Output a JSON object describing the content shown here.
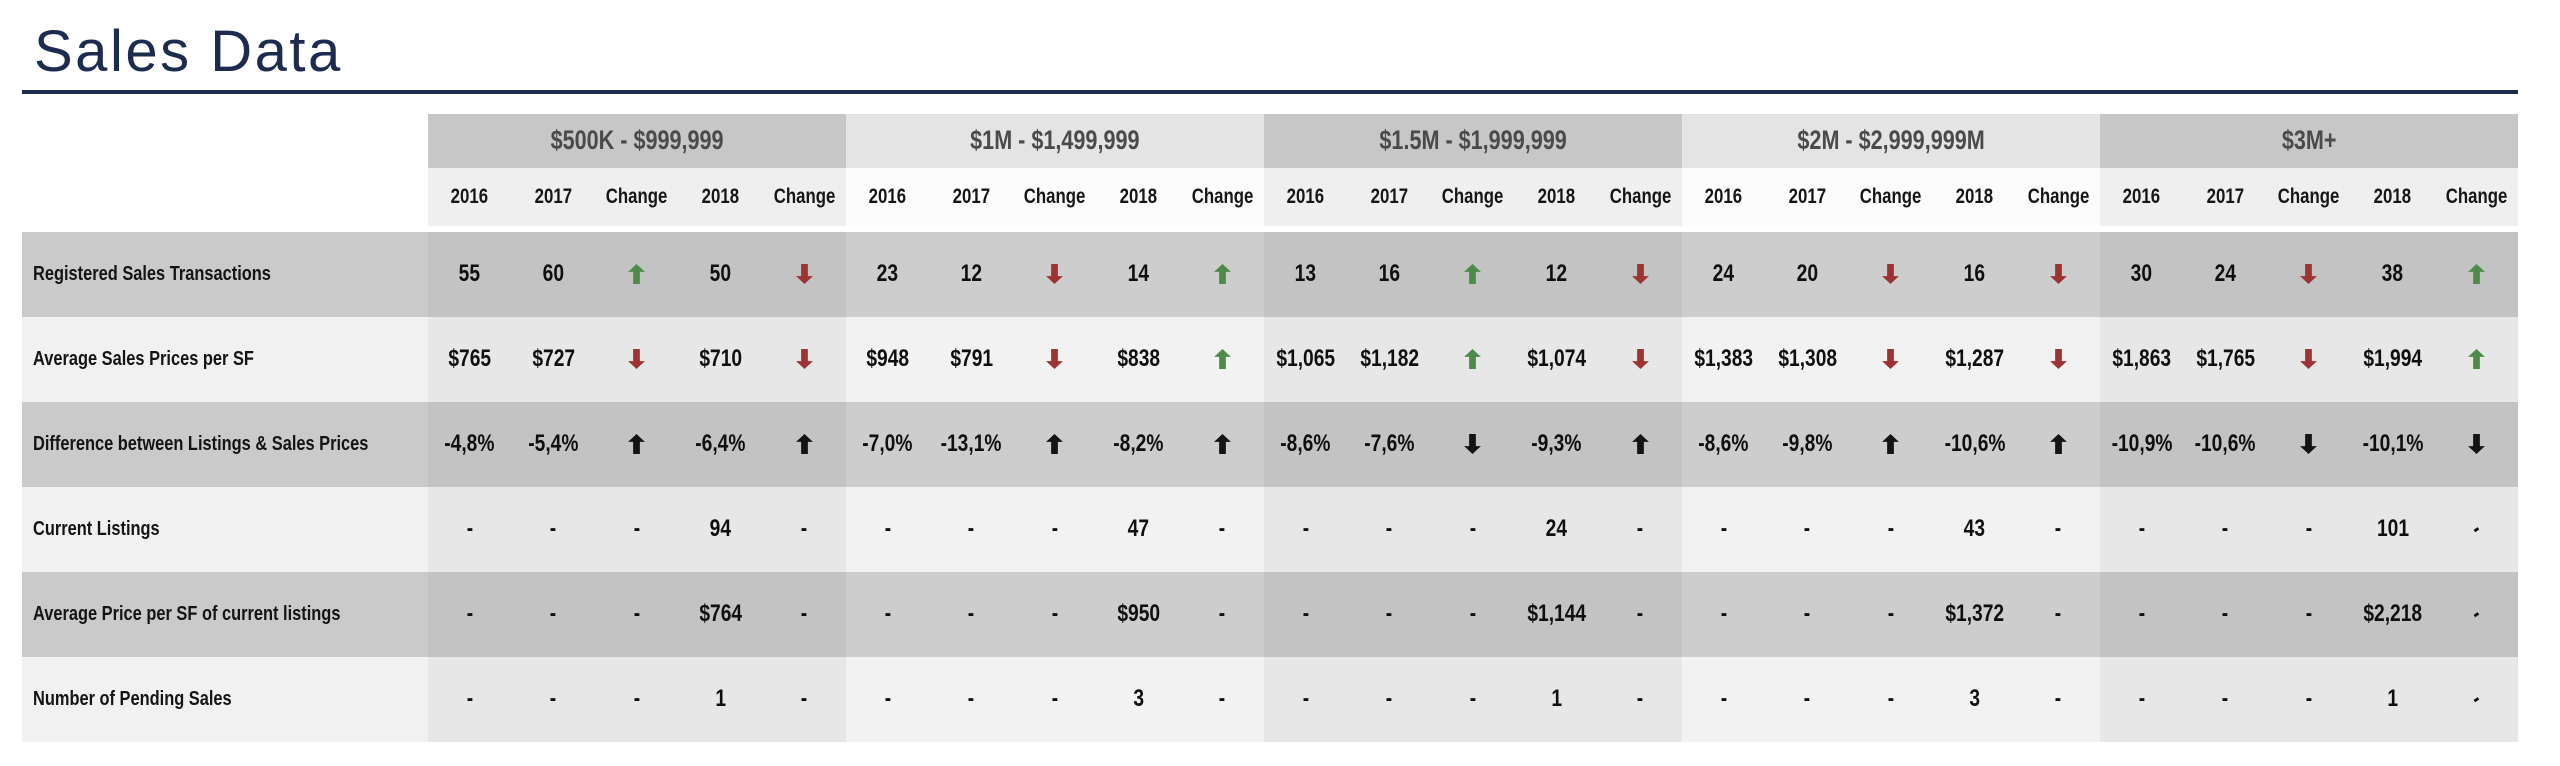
{
  "page_title": "Sales Data",
  "colors": {
    "title_navy": "#1e2b50",
    "arrow_green": "#4e8a4a",
    "arrow_red": "#9d3332",
    "arrow_black": "#141414",
    "group_header_dark_bg": "#c7c7c7",
    "group_header_light_bg": "#e4e4e4"
  },
  "icons": {
    "up_arrow": "up-arrow-icon",
    "down_arrow": "down-arrow-icon"
  },
  "chart_data": {
    "type": "table",
    "title": "Sales Data",
    "groups": [
      "$500K - $999,999",
      "$1M - $1,499,999",
      "$1.5M - $1,999,999",
      "$2M - $2,999,999M",
      "$3M+"
    ],
    "sub_columns": [
      "2016",
      "2017",
      "Change",
      "2018",
      "Change"
    ],
    "arrow_tokens": [
      "UP_GREEN",
      "DOWN_RED",
      "UP_BLACK",
      "DOWN_BLACK",
      "DASH_SLANT"
    ],
    "rows": [
      {
        "label": "Registered Sales Transactions",
        "cells": [
          [
            "55",
            "60",
            "UP_GREEN",
            "50",
            "DOWN_RED"
          ],
          [
            "23",
            "12",
            "DOWN_RED",
            "14",
            "UP_GREEN"
          ],
          [
            "13",
            "16",
            "UP_GREEN",
            "12",
            "DOWN_RED"
          ],
          [
            "24",
            "20",
            "DOWN_RED",
            "16",
            "DOWN_RED"
          ],
          [
            "30",
            "24",
            "DOWN_RED",
            "38",
            "UP_GREEN"
          ]
        ]
      },
      {
        "label": "Average Sales Prices per SF",
        "cells": [
          [
            "$765",
            "$727",
            "DOWN_RED",
            "$710",
            "DOWN_RED"
          ],
          [
            "$948",
            "$791",
            "DOWN_RED",
            "$838",
            "UP_GREEN"
          ],
          [
            "$1,065",
            "$1,182",
            "UP_GREEN",
            "$1,074",
            "DOWN_RED"
          ],
          [
            "$1,383",
            "$1,308",
            "DOWN_RED",
            "$1,287",
            "DOWN_RED"
          ],
          [
            "$1,863",
            "$1,765",
            "DOWN_RED",
            "$1,994",
            "UP_GREEN"
          ]
        ]
      },
      {
        "label": "Difference between Listings & Sales Prices",
        "cells": [
          [
            "-4,8%",
            "-5,4%",
            "UP_BLACK",
            "-6,4%",
            "UP_BLACK"
          ],
          [
            "-7,0%",
            "-13,1%",
            "UP_BLACK",
            "-8,2%",
            "UP_BLACK"
          ],
          [
            "-8,6%",
            "-7,6%",
            "DOWN_BLACK",
            "-9,3%",
            "UP_BLACK"
          ],
          [
            "-8,6%",
            "-9,8%",
            "UP_BLACK",
            "-10,6%",
            "UP_BLACK"
          ],
          [
            "-10,9%",
            "-10,6%",
            "DOWN_BLACK",
            "-10,1%",
            "DOWN_BLACK"
          ]
        ]
      },
      {
        "label": "Current Listings",
        "cells": [
          [
            "-",
            "-",
            "-",
            "94",
            "-"
          ],
          [
            "-",
            "-",
            "-",
            "47",
            "-"
          ],
          [
            "-",
            "-",
            "-",
            "24",
            "-"
          ],
          [
            "-",
            "-",
            "-",
            "43",
            "-"
          ],
          [
            "-",
            "-",
            "-",
            "101",
            "DASH_SLANT"
          ]
        ]
      },
      {
        "label": "Average Price per SF of current listings",
        "cells": [
          [
            "-",
            "-",
            "-",
            "$764",
            "-"
          ],
          [
            "-",
            "-",
            "-",
            "$950",
            "-"
          ],
          [
            "-",
            "-",
            "-",
            "$1,144",
            "-"
          ],
          [
            "-",
            "-",
            "-",
            "$1,372",
            "-"
          ],
          [
            "-",
            "-",
            "-",
            "$2,218",
            "DASH_SLANT"
          ]
        ]
      },
      {
        "label": "Number of Pending Sales",
        "cells": [
          [
            "-",
            "-",
            "-",
            "1",
            "-"
          ],
          [
            "-",
            "-",
            "-",
            "3",
            "-"
          ],
          [
            "-",
            "-",
            "-",
            "1",
            "-"
          ],
          [
            "-",
            "-",
            "-",
            "3",
            "-"
          ],
          [
            "-",
            "-",
            "-",
            "1",
            "DASH_SLANT"
          ]
        ]
      }
    ]
  }
}
